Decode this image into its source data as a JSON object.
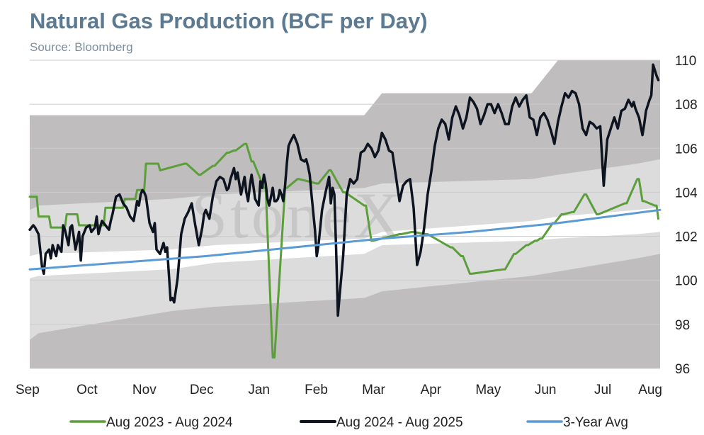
{
  "chart_data": {
    "type": "line",
    "title": "Natural Gas Production (BCF per Day)",
    "subtitle": "Source: Bloomberg",
    "watermark": "StoneX",
    "xlabel": "",
    "ylabel": "",
    "x_axis": {
      "months": [
        "Sep",
        "Oct",
        "Nov",
        "Dec",
        "Jan",
        "Feb",
        "Mar",
        "Apr",
        "May",
        "Jun",
        "Jul",
        "Aug"
      ],
      "range_days": [
        0,
        358
      ]
    },
    "y_axis": {
      "side": "right",
      "ticks": [
        96,
        98,
        100,
        102,
        104,
        106,
        108,
        110
      ],
      "range": [
        96,
        110
      ]
    },
    "grid": true,
    "legend": "bottom",
    "colors": {
      "series_2023_2024": "#5c9e3a",
      "series_2024_2025": "#0d1420",
      "avg_3yr": "#5b9bd5",
      "band_outer": "#bfbdbd",
      "band_inner": "#dcdcdc",
      "band_center": "#ffffff",
      "gridline": "#cccccc"
    },
    "bands": {
      "day": [
        0,
        5,
        80,
        105,
        190,
        200,
        285,
        300,
        345,
        358
      ],
      "outer_upper": [
        107.5,
        107.5,
        107.5,
        107.5,
        107.5,
        108.5,
        108.5,
        110,
        110,
        110
      ],
      "inner_upper": [
        103.2,
        103.4,
        103.7,
        103.9,
        104.2,
        104.4,
        104.6,
        104.8,
        105.3,
        105.5
      ],
      "center_upper": [
        101.1,
        101.2,
        101.4,
        101.6,
        101.9,
        102.2,
        102.7,
        102.9,
        103.2,
        103.3
      ],
      "center_lower": [
        100.1,
        100.2,
        100.5,
        100.8,
        101.2,
        101.6,
        101.8,
        101.9,
        102.1,
        102.2
      ],
      "inner_lower": [
        97.3,
        97.6,
        98.6,
        98.8,
        99.2,
        99.5,
        100.2,
        100.4,
        101.0,
        101.2
      ]
    },
    "series": [
      {
        "name": "Aug 2023 - Aug 2024",
        "day": [
          0,
          4,
          5,
          11,
          12,
          20,
          21,
          27,
          28,
          42,
          43,
          53,
          54,
          60,
          61,
          65,
          66,
          73,
          74,
          88,
          89,
          96,
          97,
          104,
          105,
          112,
          113,
          116,
          117,
          122,
          123,
          126,
          127,
          133,
          134,
          138,
          139,
          145,
          146,
          152,
          153,
          163,
          164,
          170,
          171,
          178,
          179,
          190,
          191,
          194,
          195,
          210,
          211,
          217,
          218,
          225,
          226,
          239,
          240,
          245,
          246,
          250,
          251,
          269,
          270,
          275,
          276,
          282,
          283,
          287,
          288,
          290,
          291,
          297,
          298,
          302,
          303,
          308,
          309,
          315,
          316,
          322,
          323,
          338,
          339,
          345,
          346,
          348,
          349,
          355,
          356,
          357
        ],
        "values": [
          103.8,
          103.8,
          102.9,
          102.9,
          102.4,
          102.4,
          103.0,
          103.0,
          102.5,
          102.5,
          103.3,
          103.3,
          103.7,
          103.7,
          104.1,
          104.1,
          105.3,
          105.3,
          105.0,
          105.3,
          105.3,
          104.8,
          104.8,
          105.2,
          105.2,
          105.8,
          105.8,
          105.9,
          105.9,
          106.2,
          106.2,
          105.4,
          105.4,
          104.2,
          104.2,
          96.5,
          96.5,
          104.2,
          104.2,
          104.6,
          104.6,
          104.4,
          104.4,
          105.0,
          105.0,
          104.0,
          104.0,
          103.4,
          103.4,
          101.8,
          101.8,
          102.1,
          102.1,
          102.2,
          102.2,
          102.1,
          102.1,
          101.5,
          101.5,
          101.1,
          101.1,
          100.3,
          100.3,
          100.5,
          100.5,
          101.2,
          101.2,
          101.6,
          101.6,
          101.8,
          101.8,
          101.9,
          101.9,
          102.6,
          102.6,
          103.0,
          103.0,
          103.1,
          103.1,
          103.9,
          103.9,
          103.0,
          103.0,
          103.5,
          103.5,
          104.6,
          104.6,
          103.6,
          103.6,
          103.4,
          103.4,
          102.8
        ]
      },
      {
        "name": "Aug 2024 - Aug 2025",
        "day": [
          0,
          1,
          2,
          3,
          5,
          7,
          8,
          9,
          11,
          12,
          13,
          15,
          16,
          18,
          19,
          20,
          22,
          23,
          24,
          26,
          28,
          29,
          30,
          32,
          34,
          35,
          37,
          38,
          39,
          41,
          43,
          45,
          46,
          47,
          49,
          51,
          53,
          55,
          57,
          59,
          61,
          62,
          63,
          64,
          65,
          66,
          67,
          68,
          69,
          70,
          71,
          72,
          74,
          76,
          77,
          78,
          80,
          81,
          82,
          84,
          86,
          88,
          90,
          91,
          92,
          94,
          96,
          98,
          99,
          100,
          102,
          104,
          106,
          108,
          110,
          112,
          113,
          114,
          116,
          117,
          118,
          120,
          122,
          123,
          124,
          125,
          126,
          127,
          128,
          130,
          131,
          132,
          133,
          134,
          135,
          136,
          137,
          138,
          139,
          140,
          141,
          142,
          143,
          144,
          145,
          146,
          147,
          148,
          150,
          152,
          154,
          156,
          157,
          158,
          159,
          160,
          162,
          163,
          164,
          166,
          168,
          170,
          171,
          172,
          173,
          174,
          175,
          176,
          178,
          180,
          182,
          184,
          186,
          188,
          190,
          192,
          194,
          196,
          198,
          200,
          202,
          204,
          206,
          208,
          210,
          212,
          214,
          216,
          218,
          220,
          222,
          224,
          226,
          228,
          230,
          232,
          234,
          236,
          238,
          240,
          242,
          244,
          246,
          248,
          250,
          252,
          254,
          256,
          258,
          260,
          262,
          264,
          266,
          268,
          270,
          272,
          274,
          276,
          278,
          280,
          282,
          284,
          286,
          288,
          290,
          292,
          294,
          296,
          298,
          300,
          302,
          304,
          306,
          308,
          310,
          312,
          314,
          316,
          318,
          320,
          322,
          324,
          326,
          328,
          330,
          332,
          334,
          336,
          338,
          340,
          342,
          343,
          344,
          346,
          348,
          349,
          350,
          352,
          353,
          354,
          356,
          357
        ],
        "values": [
          102.3,
          102.4,
          102.5,
          102.4,
          102.1,
          100.6,
          100.3,
          101.2,
          101.4,
          101.0,
          101.6,
          101.1,
          101.6,
          101.3,
          102.5,
          102.3,
          101.6,
          102.4,
          102.5,
          101.4,
          102.2,
          100.9,
          102.0,
          102.4,
          102.5,
          102.2,
          102.4,
          102.9,
          102.1,
          102.7,
          102.5,
          102.3,
          102.7,
          103.0,
          103.8,
          103.9,
          103.5,
          103.3,
          102.9,
          102.7,
          103.6,
          103.4,
          103.9,
          104.1,
          104.0,
          103.8,
          103.2,
          102.6,
          102.4,
          102.2,
          102.6,
          101.4,
          101.2,
          101.7,
          101.3,
          101.5,
          99.1,
          99.2,
          99.0,
          100.1,
          102.1,
          102.8,
          103.1,
          103.3,
          103.5,
          102.5,
          101.6,
          102.4,
          103.0,
          103.2,
          102.8,
          103.8,
          104.5,
          104.7,
          104.6,
          104.1,
          104.2,
          104.6,
          105.1,
          104.6,
          104.9,
          103.9,
          104.7,
          104.0,
          103.6,
          104.3,
          104.8,
          104.3,
          103.7,
          103.4,
          104.5,
          104.2,
          104.8,
          104.4,
          103.7,
          103.4,
          103.8,
          104.2,
          103.6,
          103.6,
          103.7,
          104.1,
          103.9,
          103.6,
          104.3,
          105.3,
          106.1,
          106.3,
          106.6,
          106.2,
          105.5,
          105.4,
          105.5,
          105.2,
          104.8,
          103.9,
          102.3,
          101.1,
          101.6,
          103.2,
          104.0,
          104.7,
          103.5,
          104.2,
          103.9,
          101.4,
          98.4,
          99.3,
          101.1,
          103.9,
          104.6,
          104.4,
          104.6,
          105.8,
          105.9,
          106.2,
          106.0,
          105.6,
          105.9,
          106.7,
          106.4,
          105.9,
          105.8,
          104.7,
          103.6,
          104.3,
          104.5,
          104.6,
          103.3,
          100.7,
          101.3,
          102.4,
          103.9,
          104.9,
          106.1,
          106.9,
          107.3,
          107.1,
          106.4,
          107.4,
          107.9,
          107.5,
          106.9,
          107.4,
          108.3,
          108.1,
          107.8,
          107.1,
          107.5,
          108.0,
          108.0,
          107.6,
          108.0,
          107.6,
          107.1,
          107.1,
          107.9,
          108.3,
          107.9,
          108.2,
          108.4,
          107.4,
          107.3,
          106.6,
          107.4,
          107.6,
          107.3,
          106.8,
          106.2,
          107.2,
          107.9,
          108.5,
          108.3,
          108.6,
          108.5,
          108.0,
          106.9,
          106.6,
          107.2,
          107.1,
          106.9,
          107.0,
          104.3,
          106.4,
          106.9,
          107.4,
          106.9,
          107.7,
          107.8,
          108.2,
          107.9,
          108.1,
          107.8,
          107.4,
          106.6,
          107.1,
          107.7,
          108.2,
          108.4,
          109.8,
          109.3,
          109.1,
          108.8,
          109.2,
          109.6,
          109.4,
          108.9,
          107.6,
          109.0,
          107.2,
          109.3,
          109.8,
          109.8,
          109.4
        ]
      },
      {
        "name": "3-Year Avg",
        "day": [
          0,
          50,
          100,
          150,
          200,
          250,
          300,
          358
        ],
        "values": [
          100.5,
          100.8,
          101.1,
          101.5,
          101.9,
          102.2,
          102.6,
          103.2
        ]
      }
    ]
  }
}
